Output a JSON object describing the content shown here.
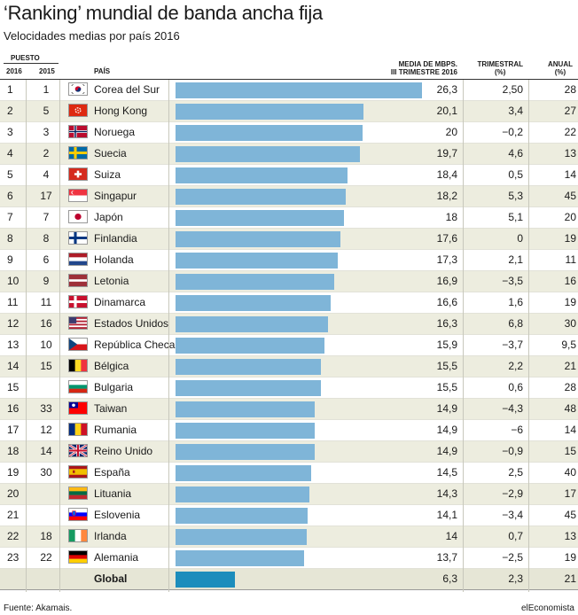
{
  "title": "‘Ranking’ mundial de banda ancha fija",
  "subtitle": "Velocidades medias por país 2016",
  "headers": {
    "puesto": "PUESTO",
    "y2016": "2016",
    "y2015": "2015",
    "pais": "PAÍS",
    "media1": "MEDIA DE MBPS.",
    "media2": "III TRIMESTRE 2016",
    "trimestral1": "TRIMESTRAL",
    "trimestral2": "(%)",
    "anual1": "ANUAL",
    "anual2": "(%)"
  },
  "chart_data": {
    "type": "bar",
    "orientation": "horizontal",
    "value_domain": [
      0,
      26.3
    ],
    "rows": [
      {
        "rank_2016": "1",
        "rank_2015": "1",
        "country": "Corea del Sur",
        "flag": "korea-flag-icon",
        "speed": 26.3,
        "speed_label": "26,3",
        "quarterly": "2,50",
        "annual": "28"
      },
      {
        "rank_2016": "2",
        "rank_2015": "5",
        "country": "Hong Kong",
        "flag": "hong-kong-flag-icon",
        "speed": 20.1,
        "speed_label": "20,1",
        "quarterly": "3,4",
        "annual": "27"
      },
      {
        "rank_2016": "3",
        "rank_2015": "3",
        "country": "Noruega",
        "flag": "norway-flag-icon",
        "speed": 20,
        "speed_label": "20",
        "quarterly": "−0,2",
        "annual": "22"
      },
      {
        "rank_2016": "4",
        "rank_2015": "2",
        "country": "Suecia",
        "flag": "sweden-flag-icon",
        "speed": 19.7,
        "speed_label": "19,7",
        "quarterly": "4,6",
        "annual": "13"
      },
      {
        "rank_2016": "5",
        "rank_2015": "4",
        "country": "Suiza",
        "flag": "switzerland-flag-icon",
        "speed": 18.4,
        "speed_label": "18,4",
        "quarterly": "0,5",
        "annual": "14"
      },
      {
        "rank_2016": "6",
        "rank_2015": "17",
        "country": "Singapur",
        "flag": "singapore-flag-icon",
        "speed": 18.2,
        "speed_label": "18,2",
        "quarterly": "5,3",
        "annual": "45"
      },
      {
        "rank_2016": "7",
        "rank_2015": "7",
        "country": "Japón",
        "flag": "japan-flag-icon",
        "speed": 18,
        "speed_label": "18",
        "quarterly": "5,1",
        "annual": "20"
      },
      {
        "rank_2016": "8",
        "rank_2015": "8",
        "country": "Finlandia",
        "flag": "finland-flag-icon",
        "speed": 17.6,
        "speed_label": "17,6",
        "quarterly": "0",
        "annual": "19"
      },
      {
        "rank_2016": "9",
        "rank_2015": "6",
        "country": "Holanda",
        "flag": "netherlands-flag-icon",
        "speed": 17.3,
        "speed_label": "17,3",
        "quarterly": "2,1",
        "annual": "11"
      },
      {
        "rank_2016": "10",
        "rank_2015": "9",
        "country": "Letonia",
        "flag": "latvia-flag-icon",
        "speed": 16.9,
        "speed_label": "16,9",
        "quarterly": "−3,5",
        "annual": "16"
      },
      {
        "rank_2016": "11",
        "rank_2015": "11",
        "country": "Dinamarca",
        "flag": "denmark-flag-icon",
        "speed": 16.6,
        "speed_label": "16,6",
        "quarterly": "1,6",
        "annual": "19"
      },
      {
        "rank_2016": "12",
        "rank_2015": "16",
        "country": "Estados Unidos",
        "flag": "usa-flag-icon",
        "speed": 16.3,
        "speed_label": "16,3",
        "quarterly": "6,8",
        "annual": "30"
      },
      {
        "rank_2016": "13",
        "rank_2015": "10",
        "country": "República Checa",
        "flag": "czech-flag-icon",
        "speed": 15.9,
        "speed_label": "15,9",
        "quarterly": "−3,7",
        "annual": "9,5"
      },
      {
        "rank_2016": "14",
        "rank_2015": "15",
        "country": "Bélgica",
        "flag": "belgium-flag-icon",
        "speed": 15.5,
        "speed_label": "15,5",
        "quarterly": "2,2",
        "annual": "21"
      },
      {
        "rank_2016": "15",
        "rank_2015": "",
        "country": "Bulgaria",
        "flag": "bulgaria-flag-icon",
        "speed": 15.5,
        "speed_label": "15,5",
        "quarterly": "0,6",
        "annual": "28"
      },
      {
        "rank_2016": "16",
        "rank_2015": "33",
        "country": "Taiwan",
        "flag": "taiwan-flag-icon",
        "speed": 14.9,
        "speed_label": "14,9",
        "quarterly": "−4,3",
        "annual": "48"
      },
      {
        "rank_2016": "17",
        "rank_2015": "12",
        "country": "Rumania",
        "flag": "romania-flag-icon",
        "speed": 14.9,
        "speed_label": "14,9",
        "quarterly": "−6",
        "annual": "14"
      },
      {
        "rank_2016": "18",
        "rank_2015": "14",
        "country": "Reino Unido",
        "flag": "uk-flag-icon",
        "speed": 14.9,
        "speed_label": "14,9",
        "quarterly": "−0,9",
        "annual": "15"
      },
      {
        "rank_2016": "19",
        "rank_2015": "30",
        "country": "España",
        "flag": "spain-flag-icon",
        "speed": 14.5,
        "speed_label": "14,5",
        "quarterly": "2,5",
        "annual": "40"
      },
      {
        "rank_2016": "20",
        "rank_2015": "",
        "country": "Lituania",
        "flag": "lithuania-flag-icon",
        "speed": 14.3,
        "speed_label": "14,3",
        "quarterly": "−2,9",
        "annual": "17"
      },
      {
        "rank_2016": "21",
        "rank_2015": "",
        "country": "Eslovenia",
        "flag": "slovenia-flag-icon",
        "speed": 14.1,
        "speed_label": "14,1",
        "quarterly": "−3,4",
        "annual": "45"
      },
      {
        "rank_2016": "22",
        "rank_2015": "18",
        "country": "Irlanda",
        "flag": "ireland-flag-icon",
        "speed": 14,
        "speed_label": "14",
        "quarterly": "0,7",
        "annual": "13"
      },
      {
        "rank_2016": "23",
        "rank_2015": "22",
        "country": "Alemania",
        "flag": "germany-flag-icon",
        "speed": 13.7,
        "speed_label": "13,7",
        "quarterly": "−2,5",
        "annual": "19"
      }
    ],
    "global": {
      "country": "Global",
      "speed": 6.3,
      "speed_label": "6,3",
      "quarterly": "2,3",
      "annual": "21"
    }
  },
  "colors": {
    "bar": "#7fb5d8",
    "global_bar": "#1c8dbc",
    "row_shade": "#ededdf"
  },
  "footer": {
    "source": "Fuente: Akamais.",
    "brand": "elEconomista"
  }
}
